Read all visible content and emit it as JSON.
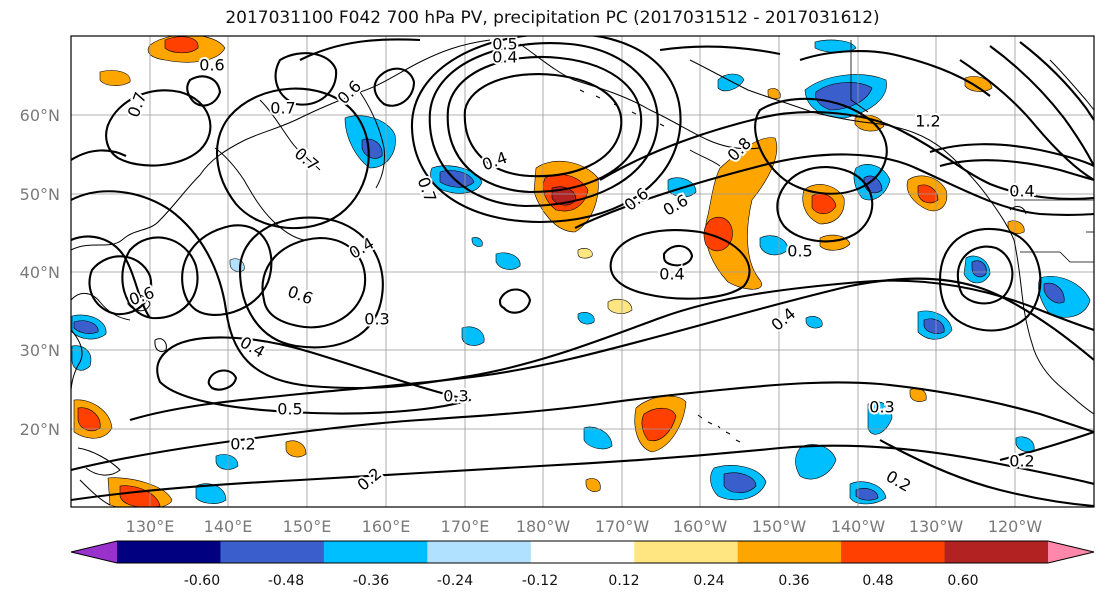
{
  "title": "2017031100 F042 700 hPa PV, precipitation PC (2017031512 - 2017031612)",
  "lat_labels": [
    "60°N",
    "50°N",
    "40°N",
    "30°N",
    "20°N"
  ],
  "lon_labels": [
    "130°E",
    "140°E",
    "150°E",
    "160°E",
    "170°E",
    "180°W",
    "170°W",
    "160°W",
    "150°W",
    "140°W",
    "130°W",
    "120°W"
  ],
  "colorbar": {
    "ticks": [
      "-0.60",
      "-0.48",
      "-0.36",
      "-0.24",
      "-0.12",
      "0.12",
      "0.24",
      "0.36",
      "0.48",
      "0.60"
    ],
    "colors": [
      "#9932cc",
      "#000080",
      "#3a5fcd",
      "#00bfff",
      "#b0e2ff",
      "#ffffff",
      "#ffe680",
      "#ffa500",
      "#ff4000",
      "#b22222",
      "#ff88aa"
    ]
  },
  "contour_labels": [
    "0.6",
    "0.4",
    "0.5",
    "0.4",
    "0.7",
    "0.7",
    "0.6",
    "0.6",
    "0.7",
    "0.7",
    "0.8",
    "0.6",
    "1.2",
    "0.4",
    "0.4",
    "0.6",
    "0.4",
    "0.5",
    "0.6",
    "0.3",
    "0.4",
    "0.4",
    "0.5",
    "0.3",
    "0.3",
    "0.2",
    "0.2",
    "0.2",
    "0.2"
  ]
}
